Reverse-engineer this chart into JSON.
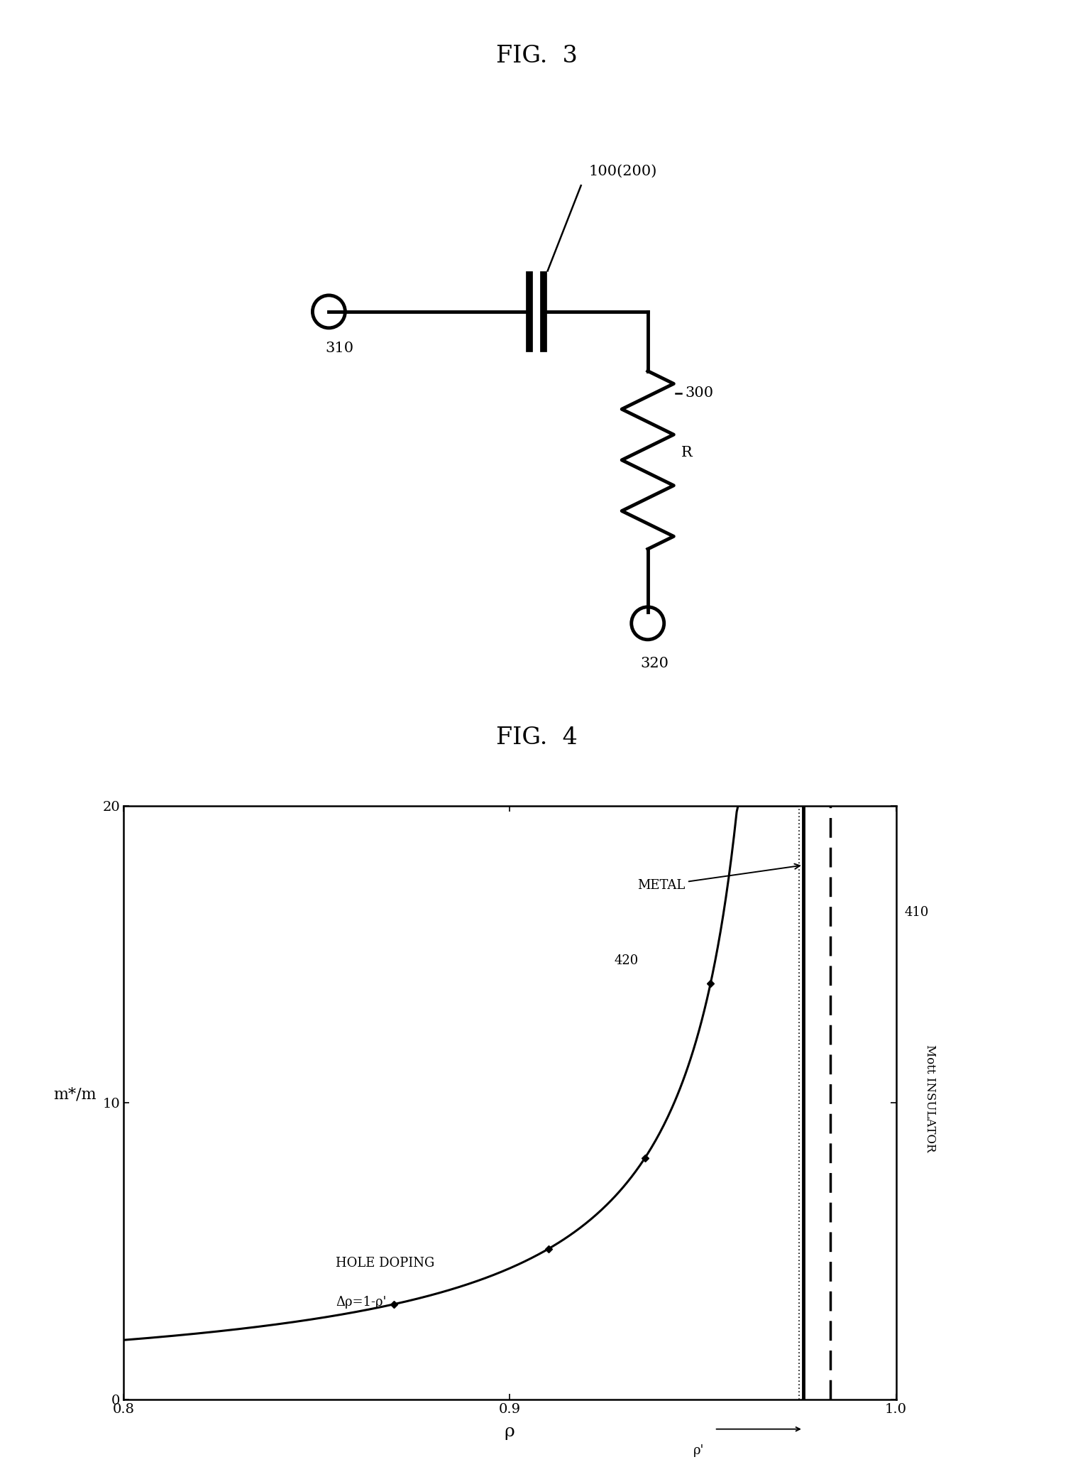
{
  "fig3_title": "FIG.  3",
  "fig4_title": "FIG.  4",
  "fig3_label_100": "100(200)",
  "fig3_label_310": "310",
  "fig3_label_300": "300",
  "fig3_label_R": "R",
  "fig3_label_320": "320",
  "fig4_ylabel": "m*/m",
  "fig4_xlabel": "ρ",
  "fig4_xlim": [
    0.8,
    1.0
  ],
  "fig4_ylim": [
    0,
    20
  ],
  "fig4_xticks": [
    0.8,
    0.9,
    1.0
  ],
  "fig4_xtick_labels": [
    "0.8",
    "0.9",
    "1.0"
  ],
  "fig4_yticks": [
    0,
    10,
    20
  ],
  "fig4_label_metal": "METAL",
  "fig4_label_420": "420",
  "fig4_label_410": "410",
  "fig4_label_hole_doping": "HOLE DOPING",
  "fig4_label_delta": "Δρ=1-ρ'",
  "fig4_label_rho_prime": "ρ'",
  "fig4_label_mott": "Mott INSULATOR",
  "fig4_rho_prime": 0.975,
  "background_color": "#ffffff",
  "title_fontsize": 24,
  "label_fontsize": 15,
  "axis_label_fontsize": 16,
  "tick_fontsize": 14
}
